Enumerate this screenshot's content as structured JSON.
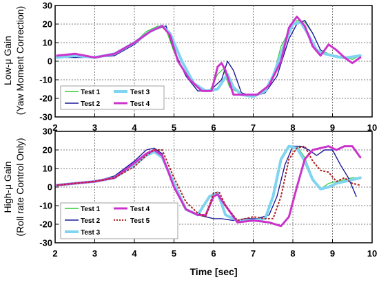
{
  "chart_data": [
    {
      "type": "line",
      "ylabel_line1": "Low-μ Gain",
      "ylabel_line2": "(Yaw Moment Correction)",
      "xlim": [
        2,
        10
      ],
      "ylim": [
        -30,
        30
      ],
      "xticks": [
        2,
        3,
        4,
        5,
        6,
        7,
        8,
        9,
        10
      ],
      "yticks": [
        -30,
        -20,
        -10,
        0,
        10,
        20,
        30
      ],
      "grid": true,
      "legend_position": "bottom-left",
      "series": [
        {
          "name": "Test 1",
          "color": "#33cc33",
          "width": 1.2,
          "style": "solid",
          "x": [
            2.05,
            2.5,
            3.0,
            3.5,
            4.0,
            4.3,
            4.6,
            4.8,
            5.0,
            5.3,
            5.6,
            5.9,
            6.1,
            6.25,
            6.4,
            6.55,
            6.8,
            7.0,
            7.3,
            7.5,
            7.7,
            7.9,
            8.1,
            8.3,
            8.5,
            8.7,
            8.9,
            9.1,
            9.3,
            9.5,
            9.7
          ],
          "y": [
            2,
            4,
            2,
            4,
            10,
            16,
            19,
            17,
            5,
            -8,
            -16,
            -16,
            -7,
            -4,
            -14,
            -16,
            -18,
            -19,
            -16,
            -8,
            8,
            16,
            22,
            21,
            15,
            6,
            4,
            3,
            2,
            1,
            3
          ]
        },
        {
          "name": "Test 2",
          "color": "#1a1a99",
          "width": 1.4,
          "style": "solid",
          "x": [
            2.05,
            2.5,
            3.0,
            3.5,
            4.0,
            4.4,
            4.8,
            5.0,
            5.3,
            5.6,
            5.9,
            6.2,
            6.35,
            6.5,
            6.7,
            7.0,
            7.3,
            7.6,
            7.9,
            8.1,
            8.3,
            8.5,
            8.7,
            8.9,
            9.1,
            9.3,
            9.5,
            9.7
          ],
          "y": [
            2,
            2,
            2,
            3,
            9,
            16,
            19,
            6,
            -8,
            -16,
            -16,
            -10,
            0,
            -5,
            -17,
            -19,
            -17,
            -8,
            12,
            20,
            22,
            15,
            6,
            3,
            3,
            2,
            2,
            3
          ]
        },
        {
          "name": "Test 3",
          "color": "#7fd4f0",
          "width": 4,
          "style": "solid",
          "x": [
            2.05,
            2.5,
            3.0,
            3.5,
            4.0,
            4.4,
            4.7,
            4.9,
            5.2,
            5.5,
            5.8,
            6.1,
            6.35,
            6.5,
            6.7,
            7.0,
            7.3,
            7.5,
            7.8,
            8.0,
            8.2,
            8.4,
            8.6,
            8.8,
            9.0,
            9.2,
            9.4,
            9.7
          ],
          "y": [
            2,
            3,
            2,
            4,
            10,
            16,
            19,
            15,
            0,
            -12,
            -16,
            -15,
            -7,
            -14,
            -18,
            -19,
            -16,
            -8,
            10,
            20,
            21,
            14,
            6,
            4,
            3,
            2,
            2,
            3
          ]
        },
        {
          "name": "Test 4",
          "color": "#cc33cc",
          "width": 3,
          "style": "solid",
          "x": [
            2.05,
            2.5,
            3.0,
            3.5,
            4.0,
            4.4,
            4.7,
            4.9,
            5.1,
            5.4,
            5.7,
            5.95,
            6.1,
            6.2,
            6.3,
            6.5,
            6.8,
            7.1,
            7.4,
            7.7,
            7.9,
            8.1,
            8.3,
            8.5,
            8.7,
            8.9,
            9.1,
            9.3,
            9.5,
            9.7
          ],
          "y": [
            3,
            4,
            2,
            4,
            10,
            16,
            19,
            14,
            0,
            -10,
            -16,
            -16,
            -3,
            -1,
            -5,
            -18,
            -18,
            -18,
            -13,
            0,
            18,
            24,
            19,
            8,
            3,
            9,
            6,
            2,
            -1,
            2
          ]
        }
      ]
    },
    {
      "type": "line",
      "ylabel_line1": "High-μ Gain",
      "ylabel_line2": "(Roll rate Control Only)",
      "xlabel": "Time [sec]",
      "xlim": [
        2,
        10
      ],
      "ylim": [
        -30,
        30
      ],
      "xticks": [
        2,
        3,
        4,
        5,
        6,
        7,
        8,
        9,
        10
      ],
      "yticks": [
        -30,
        -20,
        -10,
        0,
        10,
        20,
        30
      ],
      "grid": true,
      "legend_position": "bottom-left",
      "series": [
        {
          "name": "Test 1",
          "color": "#33cc33",
          "width": 1.2,
          "style": "solid",
          "x": [
            2.05,
            2.5,
            3.0,
            3.5,
            4.0,
            4.3,
            4.5,
            4.7,
            5.0,
            5.3,
            5.6,
            5.9,
            6.1,
            6.3,
            6.6,
            7.0,
            7.3,
            7.5,
            7.7,
            7.9,
            8.1,
            8.3,
            8.5,
            8.7,
            8.9,
            9.1,
            9.3,
            9.5,
            9.7
          ],
          "y": [
            1,
            2,
            3,
            5,
            12,
            18,
            20,
            17,
            2,
            -12,
            -15,
            -5,
            -3,
            -15,
            -18,
            -18,
            -17,
            -5,
            15,
            22,
            22,
            16,
            5,
            -1,
            2,
            3,
            4,
            5,
            5
          ]
        },
        {
          "name": "Test 2",
          "color": "#1a1a99",
          "width": 1.4,
          "style": "solid",
          "x": [
            2.05,
            2.5,
            3.0,
            3.5,
            4.0,
            4.3,
            4.5,
            4.7,
            5.0,
            5.3,
            5.6,
            5.8,
            6.0,
            6.2,
            6.5,
            6.8,
            7.1,
            7.4,
            7.6,
            7.8,
            8.0,
            8.2,
            8.4,
            8.6,
            8.8,
            9.0,
            9.2,
            9.4,
            9.6
          ],
          "y": [
            1,
            2,
            3,
            6,
            14,
            20,
            21,
            18,
            0,
            -12,
            -15,
            -16,
            -17,
            -17,
            -18,
            -17,
            -17,
            -15,
            -5,
            12,
            22,
            22,
            20,
            17,
            20,
            20,
            12,
            5,
            -5
          ]
        },
        {
          "name": "Test 3",
          "color": "#7fd4f0",
          "width": 4,
          "style": "solid",
          "x": [
            2.05,
            2.5,
            3.0,
            3.5,
            4.0,
            4.3,
            4.5,
            4.7,
            5.0,
            5.3,
            5.6,
            5.9,
            6.1,
            6.3,
            6.6,
            7.0,
            7.3,
            7.5,
            7.7,
            7.9,
            8.1,
            8.3,
            8.5,
            8.7,
            8.9,
            9.1,
            9.3,
            9.5,
            9.7
          ],
          "y": [
            1,
            2,
            3,
            5,
            12,
            17,
            19,
            16,
            2,
            -12,
            -15,
            -5,
            -3,
            -15,
            -18,
            -18,
            -17,
            -5,
            15,
            22,
            21,
            14,
            4,
            -1,
            0,
            2,
            3,
            4,
            5
          ]
        },
        {
          "name": "Test 4",
          "color": "#cc33cc",
          "width": 3,
          "style": "solid",
          "x": [
            2.05,
            2.5,
            3.0,
            3.5,
            4.0,
            4.3,
            4.5,
            4.7,
            5.0,
            5.3,
            5.6,
            5.8,
            6.0,
            6.1,
            6.3,
            6.6,
            7.0,
            7.4,
            7.7,
            7.9,
            8.1,
            8.3,
            8.5,
            8.7,
            8.9,
            9.1,
            9.3,
            9.5,
            9.7
          ],
          "y": [
            1,
            2,
            3,
            5,
            13,
            18,
            20,
            17,
            0,
            -12,
            -15,
            -15,
            -5,
            -4,
            -10,
            -19,
            -18,
            -19,
            -21,
            -16,
            0,
            15,
            20,
            21,
            22,
            20,
            22,
            22,
            16
          ]
        },
        {
          "name": "Test 5",
          "color": "#b22222",
          "width": 2,
          "style": "dotted",
          "x": [
            2.05,
            2.5,
            3.0,
            3.5,
            4.0,
            4.3,
            4.5,
            4.7,
            5.0,
            5.3,
            5.6,
            5.8,
            6.0,
            6.15,
            6.3,
            6.6,
            7.0,
            7.3,
            7.5,
            7.7,
            7.9,
            8.1,
            8.3,
            8.5,
            8.7,
            8.9,
            9.1,
            9.3,
            9.5,
            9.7
          ],
          "y": [
            1,
            2,
            3,
            5,
            11,
            17,
            20,
            20,
            5,
            -8,
            -14,
            -16,
            -3,
            -3,
            -10,
            -18,
            -16,
            -17,
            -17,
            -5,
            15,
            21,
            22,
            14,
            9,
            8,
            3,
            5,
            2,
            1
          ]
        }
      ]
    }
  ],
  "legends": [
    [
      "Test 1",
      "Test 3",
      "Test 2",
      "Test 4"
    ],
    [
      "Test 1",
      "Test 4",
      "Test 2",
      "Test 5",
      "Test 3"
    ]
  ]
}
